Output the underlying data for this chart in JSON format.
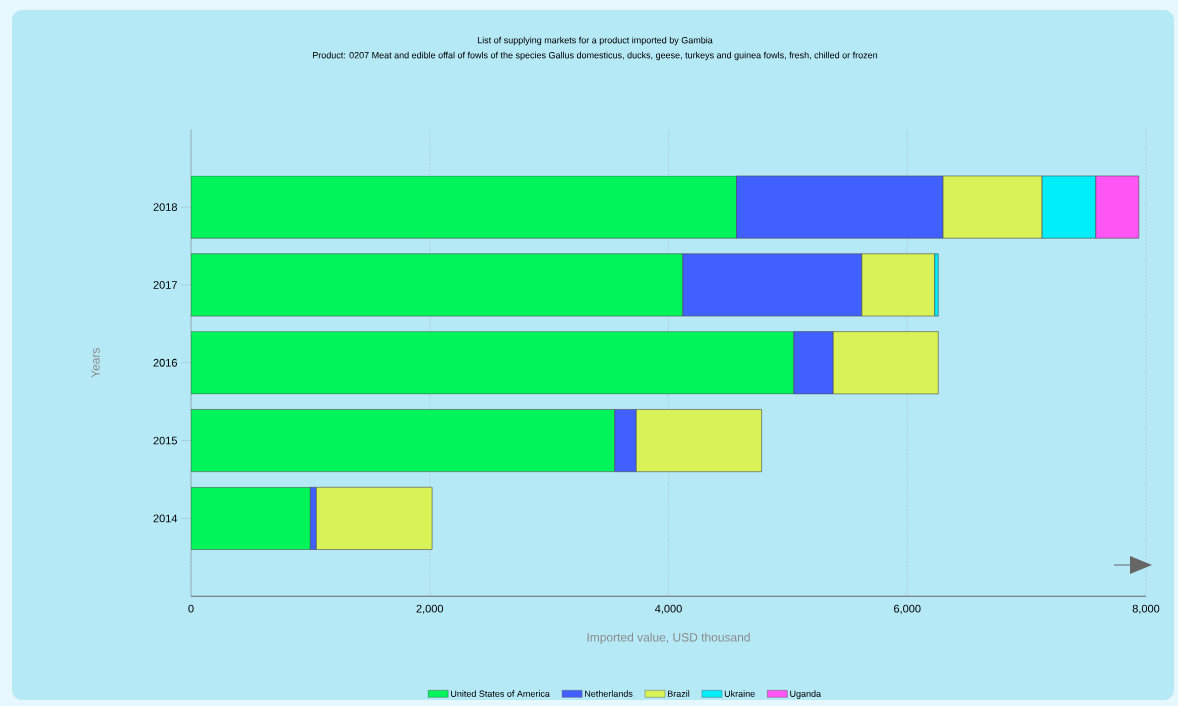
{
  "chart_data": {
    "type": "bar",
    "orientation": "horizontal",
    "stacked": true,
    "title": "List of supplying markets for a product imported by Gambia",
    "subtitle": "Product: 0207 Meat and edible offal of fowls of the species Gallus domesticus, ducks, geese, turkeys and guinea fowls, fresh, chilled or frozen",
    "xlabel": "Imported value, USD thousand",
    "ylabel": "Years",
    "categories": [
      "2018",
      "2017",
      "2016",
      "2015",
      "2014"
    ],
    "series": [
      {
        "name": "United States of America",
        "color": "#00f55a",
        "values": [
          4570,
          4120,
          5050,
          3550,
          1000
        ]
      },
      {
        "name": "Netherlands",
        "color": "#4060ff",
        "values": [
          1730,
          1500,
          330,
          180,
          50
        ]
      },
      {
        "name": "Brazil",
        "color": "#d9f257",
        "values": [
          830,
          610,
          880,
          1050,
          970
        ]
      },
      {
        "name": "Ukraine",
        "color": "#00eefa",
        "values": [
          450,
          30,
          null,
          null,
          null
        ]
      },
      {
        "name": "Uganda",
        "color": "#ff55f5",
        "values": [
          360,
          null,
          null,
          null,
          null
        ]
      }
    ],
    "xlim": [
      0,
      8000
    ],
    "xticks": [
      0,
      {
        "value": 2000,
        "label": "2,000"
      },
      {
        "value": 4000,
        "label": "4,000"
      },
      {
        "value": 6000,
        "label": "6,000"
      },
      {
        "value": 8000,
        "label": "8,000"
      }
    ],
    "grid": "x",
    "legend": "bottom"
  }
}
